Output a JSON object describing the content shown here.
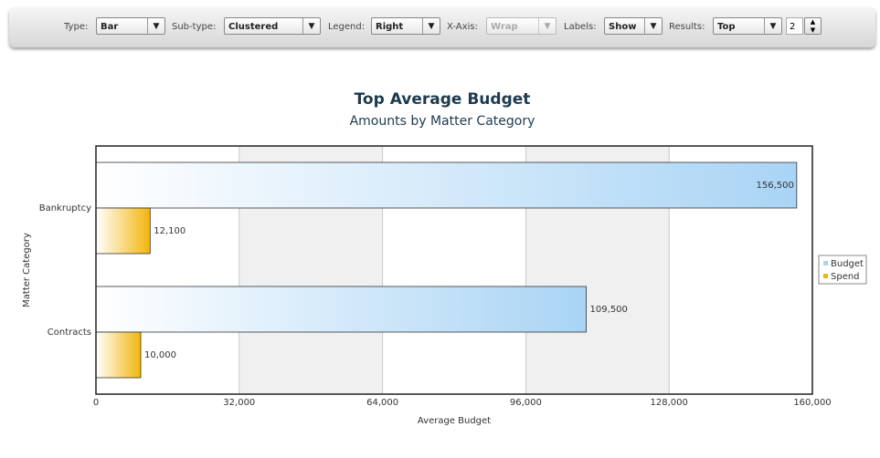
{
  "toolbar": {
    "type": {
      "label": "Type:",
      "value": "Bar"
    },
    "subtype": {
      "label": "Sub-type:",
      "value": "Clustered"
    },
    "legend": {
      "label": "Legend:",
      "value": "Right"
    },
    "xaxis": {
      "label": "X-Axis:",
      "value": "Wrap"
    },
    "labels": {
      "label": "Labels:",
      "value": "Show"
    },
    "results": {
      "label": "Results:",
      "value": "Top",
      "count": "2"
    }
  },
  "chart_data": {
    "type": "hbar",
    "title": "Top Average Budget",
    "subtitle": "Amounts by Matter Category",
    "x_label": "Average Budget",
    "y_label": "Matter Category",
    "categories": [
      "Bankruptcy",
      "Contracts"
    ],
    "series": [
      {
        "name": "Budget",
        "color": "#a9d4f5",
        "values": [
          156500,
          109500
        ],
        "value_labels": [
          "156,500",
          "109,500"
        ]
      },
      {
        "name": "Spend",
        "color": "#f2b50c",
        "values": [
          12100,
          10000
        ],
        "value_labels": [
          "12,100",
          "10,000"
        ]
      }
    ],
    "xlim": [
      0,
      160000
    ],
    "xticks": [
      0,
      {
        "value": 32000,
        "label": "32,000"
      },
      {
        "value": 64000,
        "label": "64,000"
      },
      {
        "value": 96000,
        "label": "96,000"
      },
      {
        "value": 128000,
        "label": "128,000"
      },
      {
        "value": 160000,
        "label": "160,000"
      }
    ],
    "grid": true,
    "legend": "right"
  }
}
